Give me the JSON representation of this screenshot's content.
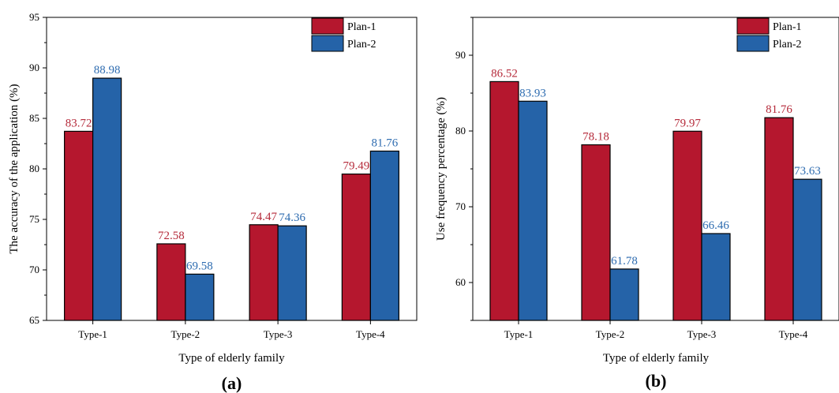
{
  "colors": {
    "plan1": "#b5172e",
    "plan2": "#2563a8",
    "plan1_label": "#b52a3a",
    "plan2_label": "#2e6cb0"
  },
  "chart_data": [
    {
      "type": "bar",
      "panel_label": "(a)",
      "xlabel": "Type of elderly family",
      "ylabel": "The accuracy of the application (%)",
      "categories": [
        "Type-1",
        "Type-2",
        "Type-3",
        "Type-4"
      ],
      "ylim": [
        65,
        95
      ],
      "yticks": [
        65,
        70,
        75,
        80,
        85,
        90,
        95
      ],
      "legend_position": "top-right",
      "series": [
        {
          "name": "Plan-1",
          "values": [
            83.72,
            72.58,
            74.47,
            79.49
          ],
          "labels": [
            "83.72",
            "72.58",
            "74.47",
            "79.49"
          ]
        },
        {
          "name": "Plan-2",
          "values": [
            88.98,
            69.58,
            74.36,
            81.76
          ],
          "labels": [
            "88.98",
            "69.58",
            "74.36",
            "81.76"
          ]
        }
      ]
    },
    {
      "type": "bar",
      "panel_label": "(b)",
      "xlabel": "Type of elderly family",
      "ylabel": "Use frequency percentage (%)",
      "categories": [
        "Type-1",
        "Type-2",
        "Type-3",
        "Type-4"
      ],
      "ylim": [
        55,
        95
      ],
      "yticks": [
        60,
        70,
        80,
        90
      ],
      "legend_position": "top-right",
      "series": [
        {
          "name": "Plan-1",
          "values": [
            86.52,
            78.18,
            79.97,
            81.76
          ],
          "labels": [
            "86.52",
            "78.18",
            "79.97",
            "81.76"
          ]
        },
        {
          "name": "Plan-2",
          "values": [
            83.93,
            61.78,
            66.46,
            73.63
          ],
          "labels": [
            "83.93",
            "61.78",
            "66.46",
            "73.63"
          ]
        }
      ]
    }
  ]
}
